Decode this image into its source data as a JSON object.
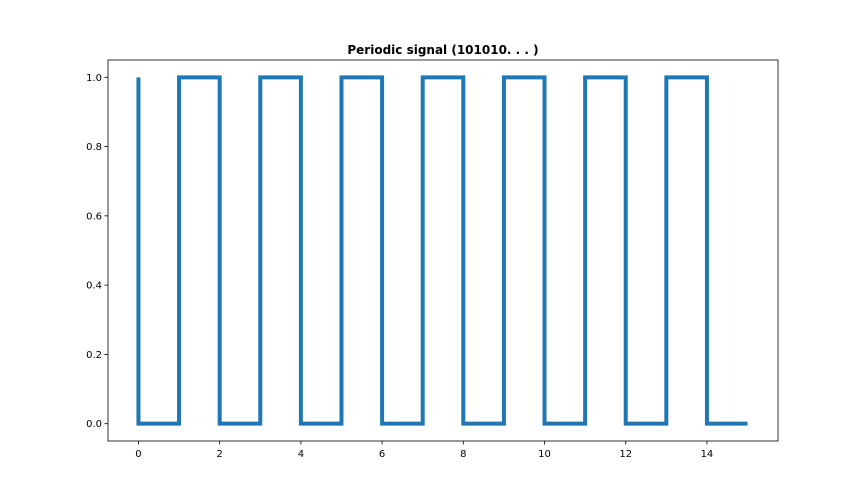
{
  "chart_data": {
    "type": "line",
    "title": "Periodic signal (101010. . . )",
    "xlabel": "",
    "ylabel": "",
    "xlim": [
      -0.75,
      15.75
    ],
    "ylim": [
      -0.05,
      1.05
    ],
    "grid": false,
    "step": "post",
    "x_ticks": [
      0,
      2,
      4,
      6,
      8,
      10,
      12,
      14
    ],
    "x_tick_labels": [
      "0",
      "2",
      "4",
      "6",
      "8",
      "10",
      "12",
      "14"
    ],
    "y_ticks": [
      0.0,
      0.2,
      0.4,
      0.6,
      0.8,
      1.0
    ],
    "y_tick_labels": [
      "0.0",
      "0.2",
      "0.4",
      "0.6",
      "0.8",
      "1.0"
    ],
    "series": [
      {
        "x": [
          0,
          0,
          1,
          1,
          2,
          2,
          3,
          3,
          4,
          4,
          5,
          5,
          6,
          6,
          7,
          7,
          8,
          8,
          9,
          9,
          10,
          10,
          11,
          11,
          12,
          12,
          13,
          13,
          14,
          14,
          15
        ],
        "y": [
          1,
          0,
          0,
          1,
          1,
          0,
          0,
          1,
          1,
          0,
          0,
          1,
          1,
          0,
          0,
          1,
          1,
          0,
          0,
          1,
          1,
          0,
          0,
          1,
          1,
          0,
          0,
          1,
          1,
          0,
          0
        ],
        "color": "#1f77b4"
      }
    ]
  }
}
